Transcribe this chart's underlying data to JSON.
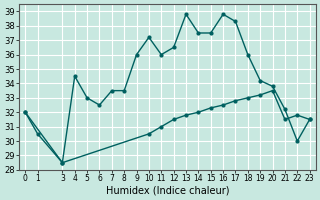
{
  "xlabel": "Humidex (Indice chaleur)",
  "ylabel": "",
  "bg_color": "#c8e8e0",
  "grid_color": "#ffffff",
  "line_color": "#006060",
  "x": [
    0,
    1,
    3,
    4,
    5,
    6,
    7,
    8,
    9,
    10,
    11,
    12,
    13,
    14,
    15,
    16,
    17,
    18,
    19,
    20,
    21,
    22,
    23
  ],
  "line1_x": [
    0,
    1,
    3,
    4,
    5,
    6,
    7,
    8,
    9,
    10,
    11,
    12,
    13,
    14,
    15,
    16,
    17,
    18,
    19,
    20,
    21,
    22,
    23
  ],
  "line1_y": [
    32.0,
    30.5,
    28.5,
    34.5,
    33.0,
    32.5,
    33.5,
    33.5,
    36.0,
    37.2,
    36.0,
    36.5,
    38.8,
    37.5,
    37.5,
    38.8,
    38.3,
    36.0,
    34.2,
    33.8,
    32.2,
    30.0,
    31.5
  ],
  "line2_x": [
    0,
    3,
    10,
    11,
    12,
    13,
    14,
    15,
    16,
    17,
    18,
    19,
    20,
    21,
    22,
    23
  ],
  "line2_y": [
    32.0,
    28.5,
    30.5,
    31.0,
    31.5,
    31.8,
    32.0,
    32.3,
    32.5,
    32.8,
    33.0,
    33.2,
    33.5,
    31.5,
    31.8,
    31.5
  ],
  "ylim": [
    28,
    39.5
  ],
  "yticks": [
    28,
    29,
    30,
    31,
    32,
    33,
    34,
    35,
    36,
    37,
    38,
    39
  ],
  "xticks": [
    0,
    1,
    3,
    4,
    5,
    6,
    7,
    8,
    9,
    10,
    11,
    12,
    13,
    14,
    15,
    16,
    17,
    18,
    19,
    20,
    21,
    22,
    23
  ]
}
